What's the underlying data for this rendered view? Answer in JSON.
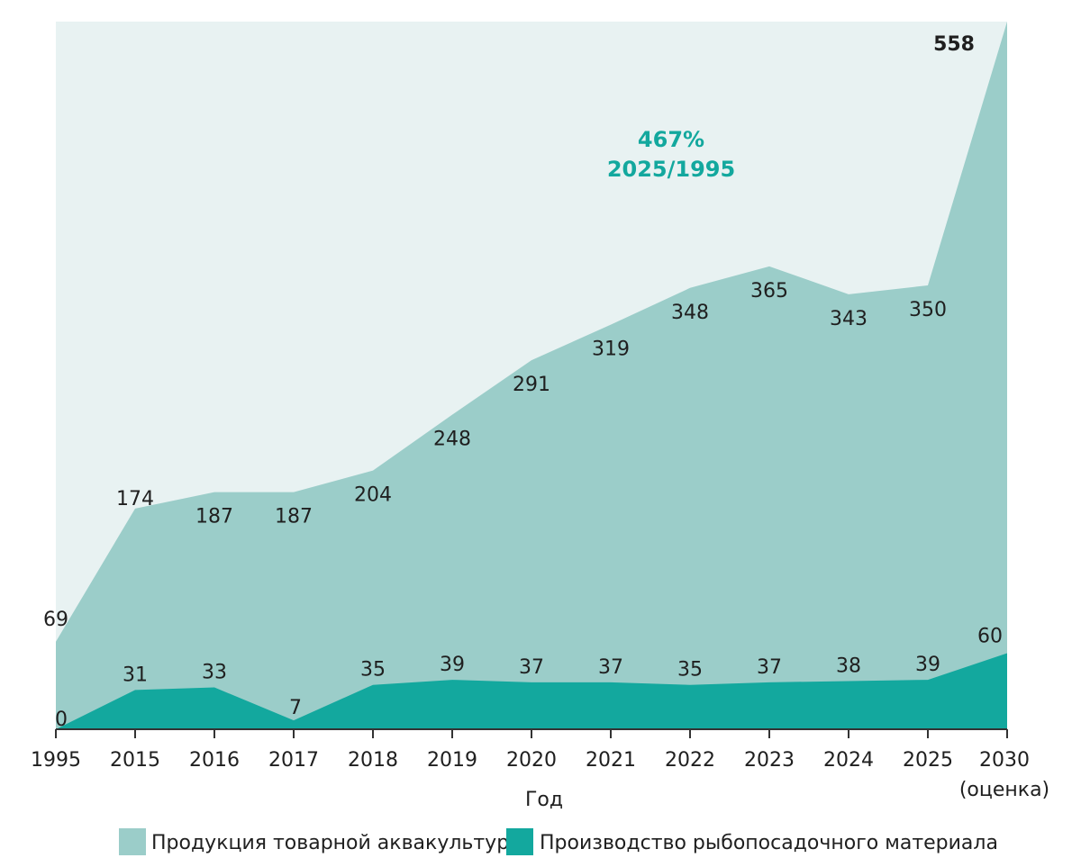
{
  "chart_data": {
    "type": "area",
    "xlabel": "Год",
    "categories": [
      "1995",
      "2015",
      "2016",
      "2017",
      "2018",
      "2019",
      "2020",
      "2021",
      "2022",
      "2023",
      "2024",
      "2025",
      "2030"
    ],
    "category_sublabels": {
      "2030": "(оценка)"
    },
    "ylim": [
      0,
      558
    ],
    "series": [
      {
        "name": "Продукция товарной аквакультуры",
        "values": [
          69,
          174,
          187,
          187,
          204,
          248,
          291,
          319,
          348,
          365,
          343,
          350,
          558
        ],
        "color": "#9bcdc9"
      },
      {
        "name": "Производство рыбопосадочного материала",
        "values": [
          0,
          31,
          33,
          7,
          35,
          39,
          37,
          37,
          35,
          37,
          38,
          39,
          60
        ],
        "color": "#13a89e"
      }
    ],
    "annotation": {
      "line1": "467%",
      "line2": "2025/1995",
      "color": "#13a89e"
    },
    "plot_background": "#e8f2f2",
    "legend_position": "bottom"
  }
}
